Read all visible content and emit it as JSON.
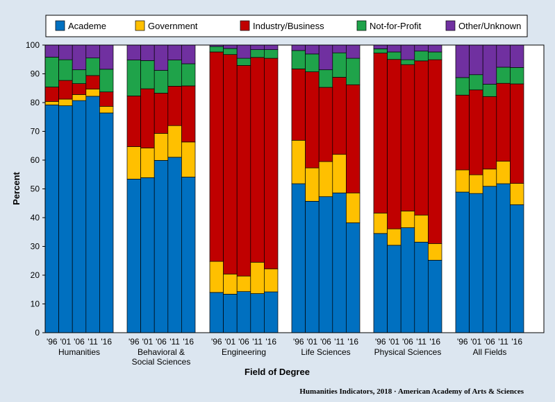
{
  "chart_data": {
    "type": "bar",
    "stacked": true,
    "xlabel": "Field of Degree",
    "ylabel": "Percent",
    "ylim": [
      0,
      100
    ],
    "yticks": [
      0,
      10,
      20,
      30,
      40,
      50,
      60,
      70,
      80,
      90,
      100
    ],
    "grid": false,
    "legend_position": "top",
    "credit": "Humanities  Indicators, 2018  · American Academy  of Arts & Sciences",
    "years": [
      "'96",
      "'01",
      "'06",
      "'11",
      "'16"
    ],
    "series": [
      {
        "name": "Academe",
        "color": "#0070c0"
      },
      {
        "name": "Government",
        "color": "#ffc000"
      },
      {
        "name": "Industry/Business",
        "color": "#c00000"
      },
      {
        "name": "Not-for-Profit",
        "color": "#1fa34a"
      },
      {
        "name": "Other/Unknown",
        "color": "#7030a0"
      }
    ],
    "groups": [
      {
        "label": [
          "Humanities"
        ],
        "values": [
          [
            79.2,
            1.2,
            5.0,
            10.4,
            4.2
          ],
          [
            78.9,
            2.3,
            6.5,
            7.2,
            5.1
          ],
          [
            80.7,
            2.1,
            3.8,
            4.8,
            8.6
          ],
          [
            82.2,
            2.5,
            4.7,
            6.1,
            4.5
          ],
          [
            76.4,
            2.3,
            5.0,
            7.9,
            8.4
          ]
        ]
      },
      {
        "label": [
          "Behavioral  &",
          "Social Sciences"
        ],
        "values": [
          [
            53.4,
            11.3,
            17.6,
            12.5,
            5.2
          ],
          [
            53.9,
            10.3,
            20.6,
            9.8,
            5.4
          ],
          [
            59.9,
            9.4,
            14.0,
            7.9,
            8.8
          ],
          [
            61.0,
            11.0,
            13.7,
            9.1,
            5.2
          ],
          [
            54.1,
            12.2,
            19.5,
            7.7,
            6.5
          ]
        ]
      },
      {
        "label": [
          "Engineering"
        ],
        "values": [
          [
            14.0,
            10.8,
            72.8,
            1.9,
            0.5
          ],
          [
            13.4,
            7.0,
            76.3,
            2.1,
            1.2
          ],
          [
            14.3,
            5.4,
            73.2,
            2.5,
            4.6
          ],
          [
            13.6,
            10.9,
            71.2,
            2.7,
            1.6
          ],
          [
            14.2,
            8.0,
            73.2,
            3.0,
            1.6
          ]
        ]
      },
      {
        "label": [
          "Life Sciences"
        ],
        "values": [
          [
            51.8,
            15.1,
            24.8,
            6.4,
            1.9
          ],
          [
            45.7,
            11.6,
            33.4,
            6.2,
            3.1
          ],
          [
            47.3,
            12.2,
            25.8,
            6.1,
            8.6
          ],
          [
            48.6,
            13.4,
            26.8,
            8.5,
            2.7
          ],
          [
            38.2,
            10.4,
            37.6,
            9.2,
            4.6
          ]
        ]
      },
      {
        "label": [
          "Physical Sciences"
        ],
        "values": [
          [
            34.5,
            7.1,
            55.6,
            1.5,
            1.3
          ],
          [
            30.4,
            5.7,
            58.9,
            2.6,
            2.4
          ],
          [
            36.5,
            5.8,
            50.9,
            1.7,
            5.1
          ],
          [
            31.5,
            9.4,
            53.6,
            3.4,
            2.1
          ],
          [
            25.2,
            5.8,
            63.9,
            2.7,
            2.4
          ]
        ]
      },
      {
        "label": [
          "All Fields"
        ],
        "values": [
          [
            48.9,
            7.7,
            26.0,
            6.1,
            11.3
          ],
          [
            48.4,
            6.5,
            29.5,
            5.3,
            10.3
          ],
          [
            50.9,
            6.0,
            25.2,
            4.3,
            13.6
          ],
          [
            51.8,
            7.8,
            27.1,
            5.6,
            7.7
          ],
          [
            44.5,
            7.4,
            34.6,
            5.7,
            7.8
          ]
        ]
      }
    ]
  }
}
